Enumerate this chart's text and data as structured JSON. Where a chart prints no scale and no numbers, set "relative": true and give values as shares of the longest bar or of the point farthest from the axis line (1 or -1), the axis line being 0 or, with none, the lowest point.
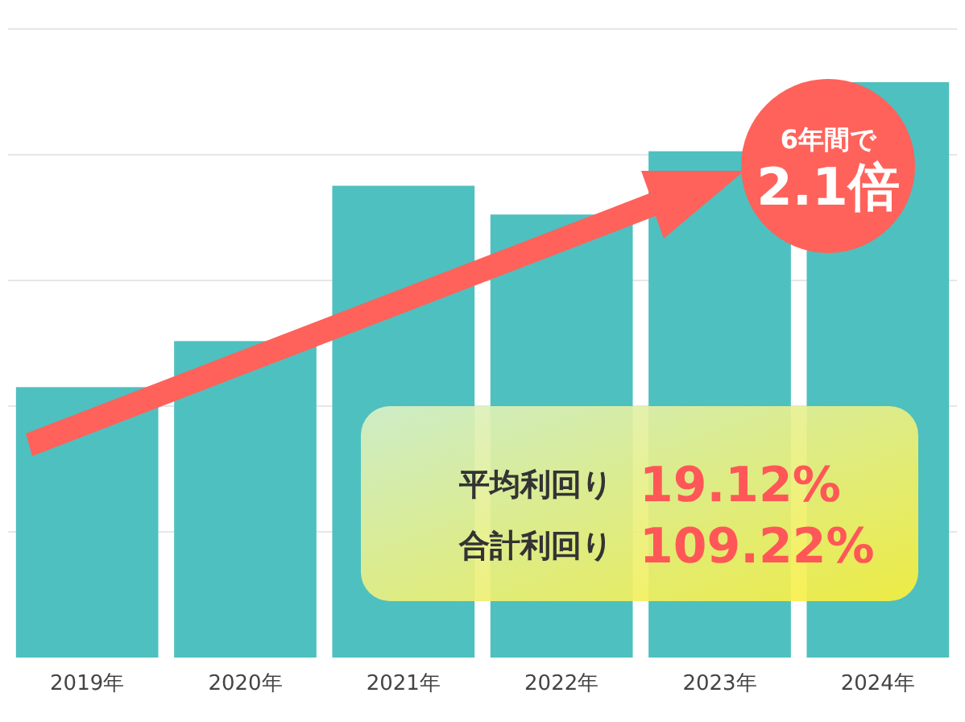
{
  "chart_data": {
    "type": "bar",
    "relative": true,
    "grid": "y",
    "color": "#4ec0bf",
    "categories": [
      "2019年",
      "2020年",
      "2021年",
      "2022年",
      "2023年",
      "2024年"
    ],
    "values": [
      0.47,
      0.55,
      0.82,
      0.77,
      0.88,
      1.0
    ],
    "annotations": [
      "6年間で",
      "2.1倍",
      "平均利回り",
      "19.12%",
      "合計利回り",
      "109.22%"
    ]
  }
}
